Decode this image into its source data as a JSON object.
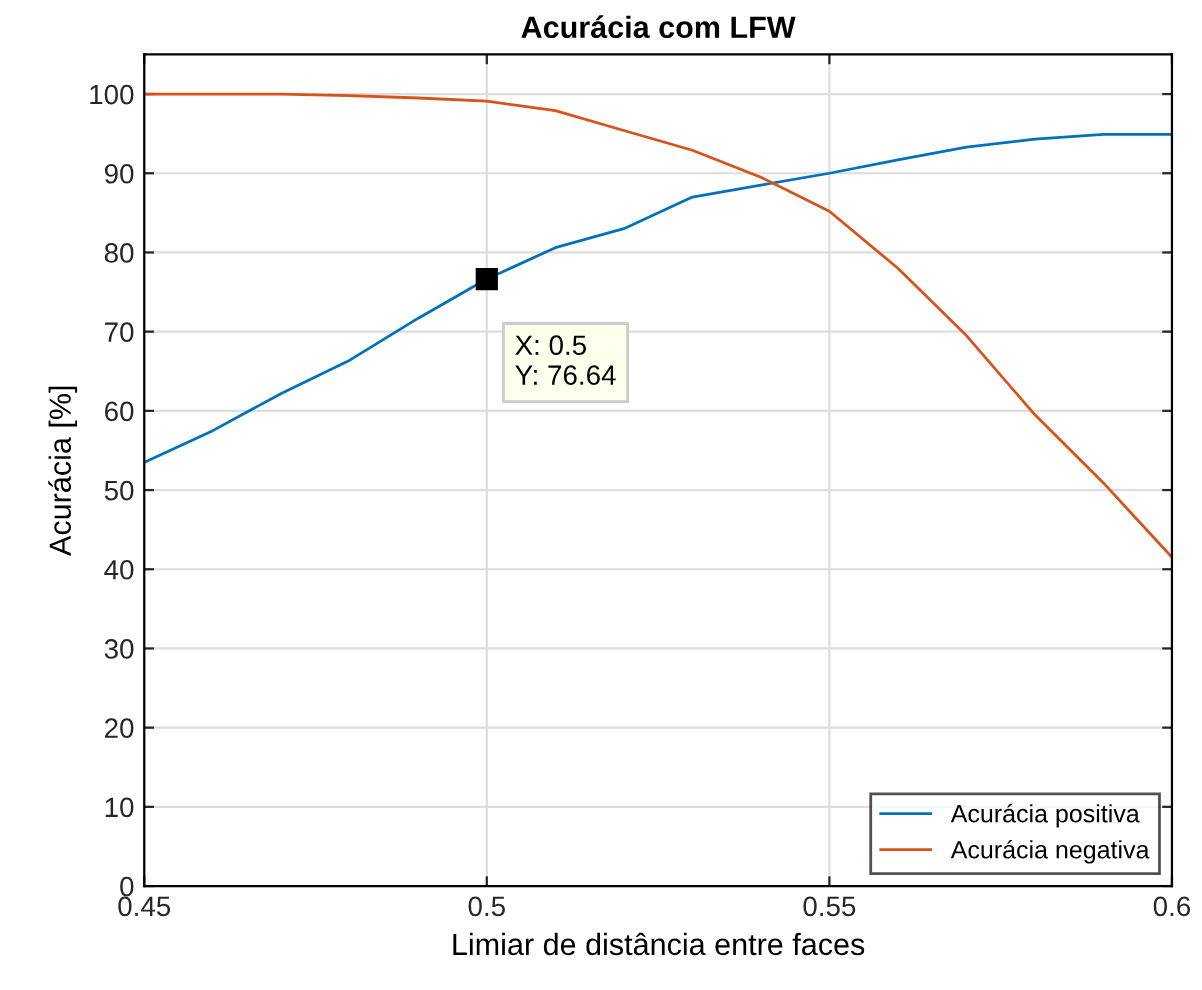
{
  "chart_data": {
    "type": "line",
    "title": "Acurácia com LFW",
    "xlabel": "Limiar de distância entre faces",
    "ylabel": "Acurácia [%]",
    "x": [
      0.45,
      0.46,
      0.47,
      0.48,
      0.49,
      0.5,
      0.51,
      0.52,
      0.53,
      0.54,
      0.55,
      0.56,
      0.57,
      0.58,
      0.59,
      0.6
    ],
    "series": [
      {
        "name": "Acurácia positiva",
        "color": "#0072bd",
        "values": [
          53.5,
          57.5,
          62.2,
          66.4,
          71.7,
          76.64,
          80.6,
          83.0,
          87.0,
          88.5,
          90.0,
          91.7,
          93.3,
          94.3,
          94.9,
          94.9
        ]
      },
      {
        "name": "Acurácia negativa",
        "color": "#d95319",
        "values": [
          100,
          100,
          100,
          99.8,
          99.5,
          99.1,
          97.9,
          95.4,
          92.9,
          89.5,
          85.2,
          78.0,
          69.5,
          59.5,
          50.9,
          41.5
        ]
      }
    ],
    "xlim": [
      0.45,
      0.6
    ],
    "xticks": [
      0.45,
      0.5,
      0.55,
      0.6
    ],
    "ylim": [
      0,
      105
    ],
    "yticks": [
      0,
      10,
      20,
      30,
      40,
      50,
      60,
      70,
      80,
      90,
      100
    ],
    "grid": true,
    "legend": "bottom right",
    "marker": "none",
    "line_style": "solid",
    "annotations": [
      {
        "text": "X: 0.5\nY: 76.64",
        "x": 0.5,
        "y": 76.64
      }
    ]
  }
}
